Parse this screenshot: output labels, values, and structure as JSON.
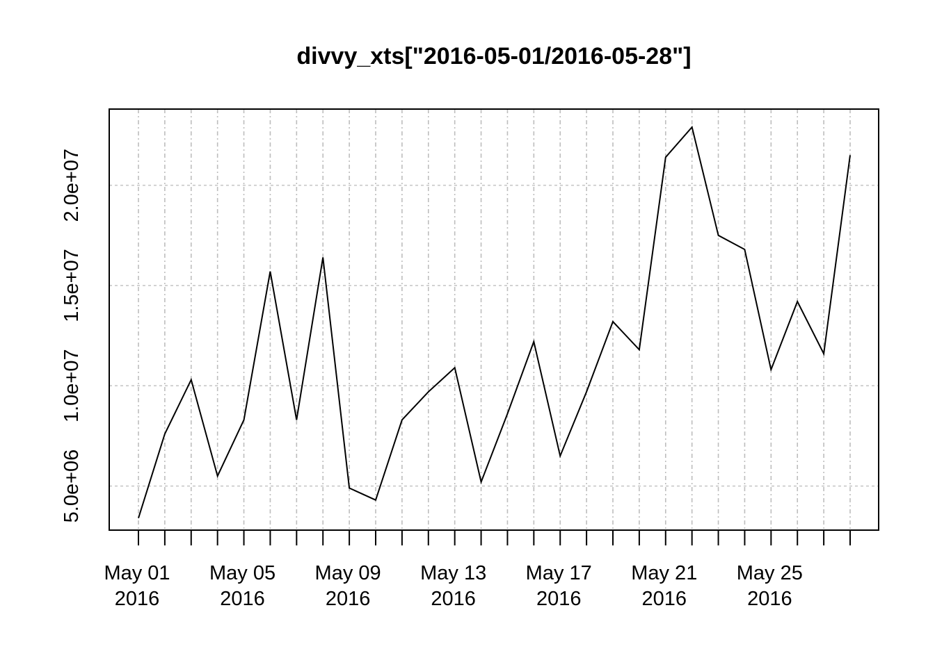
{
  "chart_data": {
    "type": "line",
    "title": "divvy_xts[\"2016-05-01/2016-05-28\"]",
    "xlabel": "",
    "ylabel": "",
    "x": [
      "2016-05-01",
      "2016-05-02",
      "2016-05-03",
      "2016-05-04",
      "2016-05-05",
      "2016-05-06",
      "2016-05-07",
      "2016-05-08",
      "2016-05-09",
      "2016-05-10",
      "2016-05-11",
      "2016-05-12",
      "2016-05-13",
      "2016-05-14",
      "2016-05-15",
      "2016-05-16",
      "2016-05-17",
      "2016-05-18",
      "2016-05-19",
      "2016-05-20",
      "2016-05-21",
      "2016-05-22",
      "2016-05-23",
      "2016-05-24",
      "2016-05-25",
      "2016-05-26",
      "2016-05-27",
      "2016-05-28"
    ],
    "values": [
      3400000,
      7600000,
      10300000,
      5500000,
      8300000,
      15700000,
      8300000,
      16400000,
      4900000,
      4300000,
      8300000,
      9700000,
      10900000,
      5200000,
      8600000,
      12200000,
      6500000,
      9700000,
      13200000,
      11800000,
      21400000,
      22900000,
      17500000,
      16800000,
      10800000,
      14200000,
      11600000,
      21500000
    ],
    "x_tick_labels": [
      {
        "date": "2016-05-01",
        "line1": "May 01",
        "line2": "2016"
      },
      {
        "date": "2016-05-05",
        "line1": "May 05",
        "line2": "2016"
      },
      {
        "date": "2016-05-09",
        "line1": "May 09",
        "line2": "2016"
      },
      {
        "date": "2016-05-13",
        "line1": "May 13",
        "line2": "2016"
      },
      {
        "date": "2016-05-17",
        "line1": "May 17",
        "line2": "2016"
      },
      {
        "date": "2016-05-21",
        "line1": "May 21",
        "line2": "2016"
      },
      {
        "date": "2016-05-25",
        "line1": "May 25",
        "line2": "2016"
      }
    ],
    "y_ticks": [
      5000000,
      10000000,
      15000000,
      20000000
    ],
    "y_tick_labels": [
      "5.0e+06",
      "1.0e+07",
      "1.5e+07",
      "2.0e+07"
    ],
    "ylim": [
      2800000,
      23800000
    ],
    "grid": true,
    "line_color": "#000000"
  }
}
